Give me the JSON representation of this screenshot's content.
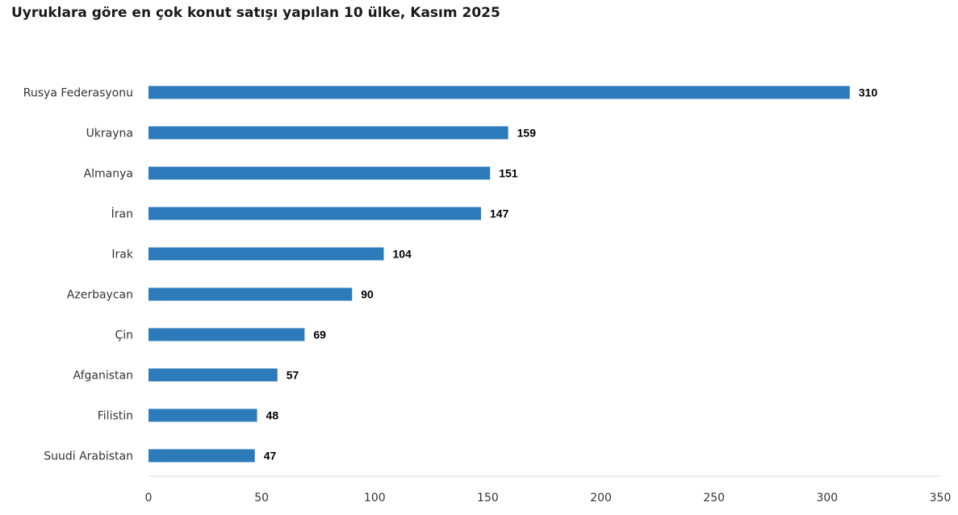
{
  "chart_data": {
    "type": "bar",
    "orientation": "horizontal",
    "title": "Uyruklara göre en çok konut satışı yapılan 10 ülke, Kasım 2025",
    "categories": [
      "Rusya Federasyonu",
      "Ukrayna",
      "Almanya",
      "İran",
      "Irak",
      "Azerbaycan",
      "Çin",
      "Afganistan",
      "Filistin",
      "Suudi Arabistan"
    ],
    "values": [
      310,
      159,
      151,
      147,
      104,
      90,
      69,
      57,
      48,
      47
    ],
    "xlim": [
      0,
      350
    ],
    "xticks": [
      0,
      50,
      100,
      150,
      200,
      250,
      300,
      350
    ],
    "grid": false,
    "data_labels": true,
    "bar_color": "#2e7bbb"
  }
}
